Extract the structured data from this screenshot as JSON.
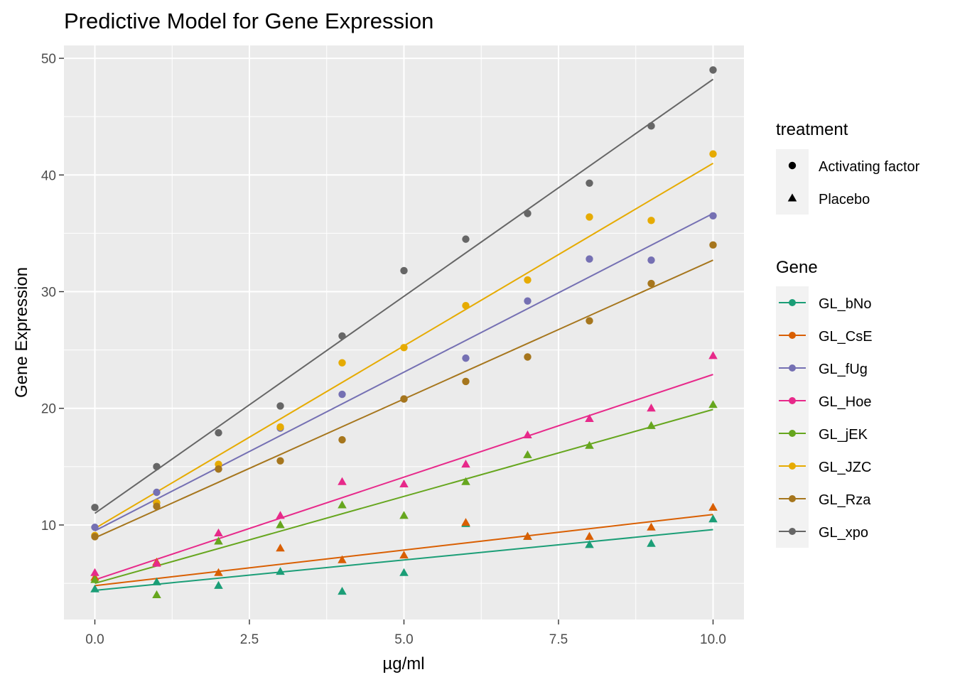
{
  "chart_data": {
    "type": "scatter",
    "title": "Predictive Model for Gene Expression",
    "xlabel": "µg/ml",
    "ylabel": "Gene Expression",
    "xlim": [
      -0.5,
      10.5
    ],
    "ylim": [
      1.9,
      51.1
    ],
    "x_ticks": [
      0,
      2.5,
      5,
      7.5,
      10
    ],
    "x_tick_labels": [
      "0.0",
      "2.5",
      "5.0",
      "7.5",
      "10.0"
    ],
    "y_ticks": [
      10,
      20,
      30,
      40,
      50
    ],
    "y_tick_labels": [
      "10",
      "20",
      "30",
      "40",
      "50"
    ],
    "grid": true,
    "legend_treatment": {
      "title": "treatment",
      "items": [
        {
          "label": "Activating factor",
          "shape": "circle"
        },
        {
          "label": "Placebo",
          "shape": "triangle"
        }
      ]
    },
    "legend_gene": {
      "title": "Gene"
    },
    "series": [
      {
        "name": "GL_bNo",
        "color": "#1B9E77",
        "shape": "triangle",
        "fit": [
          4.4,
          9.6
        ],
        "points": [
          [
            0,
            4.5
          ],
          [
            1,
            5.1
          ],
          [
            2,
            4.8
          ],
          [
            3,
            6.0
          ],
          [
            4,
            4.3
          ],
          [
            5,
            5.9
          ],
          [
            6,
            10.1
          ],
          [
            7,
            9.0
          ],
          [
            8,
            8.3
          ],
          [
            9,
            8.4
          ],
          [
            10,
            10.5
          ]
        ]
      },
      {
        "name": "GL_CsE",
        "color": "#D95F02",
        "shape": "triangle",
        "fit": [
          4.8,
          10.9
        ],
        "points": [
          [
            0,
            5.5
          ],
          [
            1,
            6.8
          ],
          [
            2,
            5.9
          ],
          [
            3,
            8.0
          ],
          [
            4,
            7.0
          ],
          [
            5,
            7.4
          ],
          [
            6,
            10.2
          ],
          [
            7,
            9.0
          ],
          [
            8,
            9.0
          ],
          [
            9,
            9.8
          ],
          [
            10,
            11.5
          ]
        ]
      },
      {
        "name": "GL_fUg",
        "color": "#7570B3",
        "shape": "circle",
        "fit": [
          9.5,
          36.7
        ],
        "points": [
          [
            0,
            9.8
          ],
          [
            1,
            12.8
          ],
          [
            2,
            14.8
          ],
          [
            3,
            18.3
          ],
          [
            4,
            21.2
          ],
          [
            5,
            20.8
          ],
          [
            6,
            24.3
          ],
          [
            7,
            29.2
          ],
          [
            8,
            32.8
          ],
          [
            9,
            32.7
          ],
          [
            10,
            36.5
          ]
        ]
      },
      {
        "name": "GL_Hoe",
        "color": "#E7298A",
        "shape": "triangle",
        "fit": [
          5.3,
          22.9
        ],
        "points": [
          [
            0,
            5.9
          ],
          [
            1,
            6.7
          ],
          [
            2,
            9.3
          ],
          [
            3,
            10.8
          ],
          [
            4,
            13.7
          ],
          [
            5,
            13.5
          ],
          [
            6,
            15.2
          ],
          [
            7,
            17.7
          ],
          [
            8,
            19.1
          ],
          [
            9,
            20.0
          ],
          [
            10,
            24.5
          ]
        ]
      },
      {
        "name": "GL_jEK",
        "color": "#66A61E",
        "shape": "triangle",
        "fit": [
          5.0,
          19.9
        ],
        "points": [
          [
            0,
            5.3
          ],
          [
            1,
            4.0
          ],
          [
            2,
            8.6
          ],
          [
            3,
            10.0
          ],
          [
            4,
            11.7
          ],
          [
            5,
            10.8
          ],
          [
            6,
            13.7
          ],
          [
            7,
            16.0
          ],
          [
            8,
            16.8
          ],
          [
            9,
            18.5
          ],
          [
            10,
            20.3
          ]
        ]
      },
      {
        "name": "GL_JZC",
        "color": "#E6AB02",
        "shape": "circle",
        "fit": [
          9.7,
          41.0
        ],
        "points": [
          [
            0,
            9.1
          ],
          [
            1,
            11.9
          ],
          [
            2,
            15.2
          ],
          [
            3,
            18.4
          ],
          [
            4,
            23.9
          ],
          [
            5,
            25.2
          ],
          [
            6,
            28.8
          ],
          [
            7,
            31.0
          ],
          [
            8,
            36.4
          ],
          [
            9,
            36.1
          ],
          [
            10,
            41.8
          ]
        ]
      },
      {
        "name": "GL_Rza",
        "color": "#A6761D",
        "shape": "circle",
        "fit": [
          8.9,
          32.7
        ],
        "points": [
          [
            0,
            9.0
          ],
          [
            1,
            11.6
          ],
          [
            2,
            14.8
          ],
          [
            3,
            15.5
          ],
          [
            4,
            17.3
          ],
          [
            5,
            20.8
          ],
          [
            6,
            22.3
          ],
          [
            7,
            24.4
          ],
          [
            8,
            27.5
          ],
          [
            9,
            30.7
          ],
          [
            10,
            34.0
          ]
        ]
      },
      {
        "name": "GL_xpo",
        "color": "#666666",
        "shape": "circle",
        "fit": [
          11.0,
          48.2
        ],
        "points": [
          [
            0,
            11.5
          ],
          [
            1,
            15.0
          ],
          [
            2,
            17.9
          ],
          [
            3,
            20.2
          ],
          [
            4,
            26.2
          ],
          [
            5,
            31.8
          ],
          [
            6,
            34.5
          ],
          [
            7,
            36.7
          ],
          [
            8,
            39.3
          ],
          [
            9,
            44.2
          ],
          [
            10,
            49.0
          ]
        ]
      }
    ]
  }
}
